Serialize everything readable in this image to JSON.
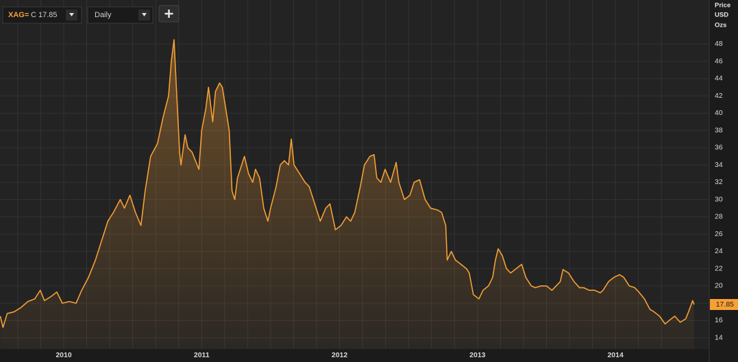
{
  "toolbar": {
    "instrument": "XAG=",
    "close_label": "C 17.85",
    "interval": "Daily"
  },
  "chart_data": {
    "type": "area",
    "ylabel": [
      "Price",
      "USD",
      "Ozs"
    ],
    "color": "#f7a035",
    "x": [
      2010.04,
      2010.06,
      2010.09,
      2010.14,
      2010.19,
      2010.24,
      2010.29,
      2010.33,
      2010.36,
      2010.41,
      2010.45,
      2010.49,
      2010.54,
      2010.59,
      2010.63,
      2010.68,
      2010.73,
      2010.78,
      2010.82,
      2010.86,
      2010.91,
      2010.94,
      2010.98,
      2011.02,
      2011.06,
      2011.09,
      2011.13,
      2011.18,
      2011.22,
      2011.26,
      2011.28,
      2011.3,
      2011.32,
      2011.34,
      2011.35,
      2011.38,
      2011.4,
      2011.43,
      2011.48,
      2011.5,
      2011.53,
      2011.55,
      2011.58,
      2011.6,
      2011.63,
      2011.65,
      2011.68,
      2011.7,
      2011.72,
      2011.74,
      2011.76,
      2011.79,
      2011.81,
      2011.84,
      2011.87,
      2011.89,
      2011.92,
      2011.95,
      2011.98,
      2012.0,
      2012.04,
      2012.07,
      2012.1,
      2012.13,
      2012.15,
      2012.17,
      2012.21,
      2012.25,
      2012.28,
      2012.32,
      2012.36,
      2012.4,
      2012.43,
      2012.47,
      2012.51,
      2012.55,
      2012.58,
      2012.61,
      2012.65,
      2012.68,
      2012.72,
      2012.75,
      2012.77,
      2012.8,
      2012.83,
      2012.87,
      2012.91,
      2012.93,
      2012.97,
      2013.01,
      2013.04,
      2013.08,
      2013.12,
      2013.16,
      2013.21,
      2013.24,
      2013.27,
      2013.28,
      2013.31,
      2013.34,
      2013.38,
      2013.42,
      2013.44,
      2013.47,
      2013.51,
      2013.54,
      2013.58,
      2013.61,
      2013.63,
      2013.65,
      2013.68,
      2013.71,
      2013.74,
      2013.78,
      2013.82,
      2013.85,
      2013.89,
      2013.92,
      2013.96,
      2014.0,
      2014.04,
      2014.07,
      2014.1,
      2014.12,
      2014.16,
      2014.2,
      2014.24,
      2014.27,
      2014.31,
      2014.35,
      2014.39,
      2014.41,
      2014.45,
      2014.49,
      2014.53,
      2014.56,
      2014.6,
      2014.64,
      2014.67,
      2014.71,
      2014.75,
      2014.78,
      2014.82,
      2014.86,
      2014.89,
      2014.93,
      2014.97,
      2015.01,
      2015.03,
      2015.06,
      2015.07
    ],
    "values": [
      16.5,
      15.2,
      16.8,
      17.0,
      17.5,
      18.2,
      18.5,
      19.5,
      18.3,
      18.8,
      19.3,
      18.0,
      18.2,
      18.0,
      19.5,
      21.0,
      23.0,
      25.5,
      27.5,
      28.5,
      30.0,
      29.0,
      30.5,
      28.5,
      27.0,
      31.0,
      35.0,
      36.5,
      39.5,
      42.0,
      46.0,
      48.5,
      42.0,
      35.5,
      34.0,
      37.5,
      36.0,
      35.5,
      33.5,
      38.0,
      40.5,
      43.0,
      39.0,
      42.5,
      43.5,
      43.0,
      40.0,
      38.0,
      31.0,
      30.0,
      32.5,
      34.0,
      35.0,
      33.0,
      32.0,
      33.5,
      32.5,
      29.0,
      27.5,
      29.0,
      31.5,
      34.0,
      34.5,
      34.0,
      37.0,
      34.0,
      33.0,
      32.0,
      31.5,
      29.5,
      27.5,
      29.0,
      29.5,
      26.5,
      27.0,
      28.0,
      27.5,
      28.5,
      31.5,
      34.0,
      35.0,
      35.2,
      32.5,
      32.0,
      33.5,
      32.0,
      34.3,
      32.0,
      30.0,
      30.5,
      32.0,
      32.3,
      30.0,
      29.0,
      28.8,
      28.5,
      27.0,
      23.0,
      24.0,
      23.0,
      22.5,
      22.0,
      21.5,
      19.0,
      18.5,
      19.5,
      20.0,
      21.0,
      23.0,
      24.3,
      23.5,
      22.0,
      21.5,
      22.0,
      22.5,
      21.0,
      20.0,
      19.8,
      20.0,
      20.0,
      19.5,
      20.0,
      20.5,
      21.9,
      21.5,
      20.5,
      19.8,
      19.8,
      19.5,
      19.5,
      19.2,
      19.5,
      20.5,
      21.0,
      21.3,
      21.0,
      20.0,
      19.8,
      19.3,
      18.5,
      17.3,
      17.0,
      16.5,
      15.6,
      16.0,
      16.5,
      15.8,
      16.2,
      17.0,
      18.3,
      17.85
    ],
    "last_price": 17.85,
    "xlim": [
      2010.038,
      2015.18
    ],
    "xticks": [
      {
        "value": 2010.5,
        "label": "2010"
      },
      {
        "value": 2011.5,
        "label": "2011"
      },
      {
        "value": 2012.5,
        "label": "2012"
      },
      {
        "value": 2013.5,
        "label": "2013"
      },
      {
        "value": 2014.5,
        "label": "2014"
      }
    ],
    "ylim": [
      12.7,
      53.1
    ],
    "yticks": [
      14,
      16,
      18,
      20,
      22,
      24,
      26,
      28,
      30,
      32,
      34,
      36,
      38,
      40,
      42,
      44,
      46,
      48
    ],
    "grid": true
  }
}
